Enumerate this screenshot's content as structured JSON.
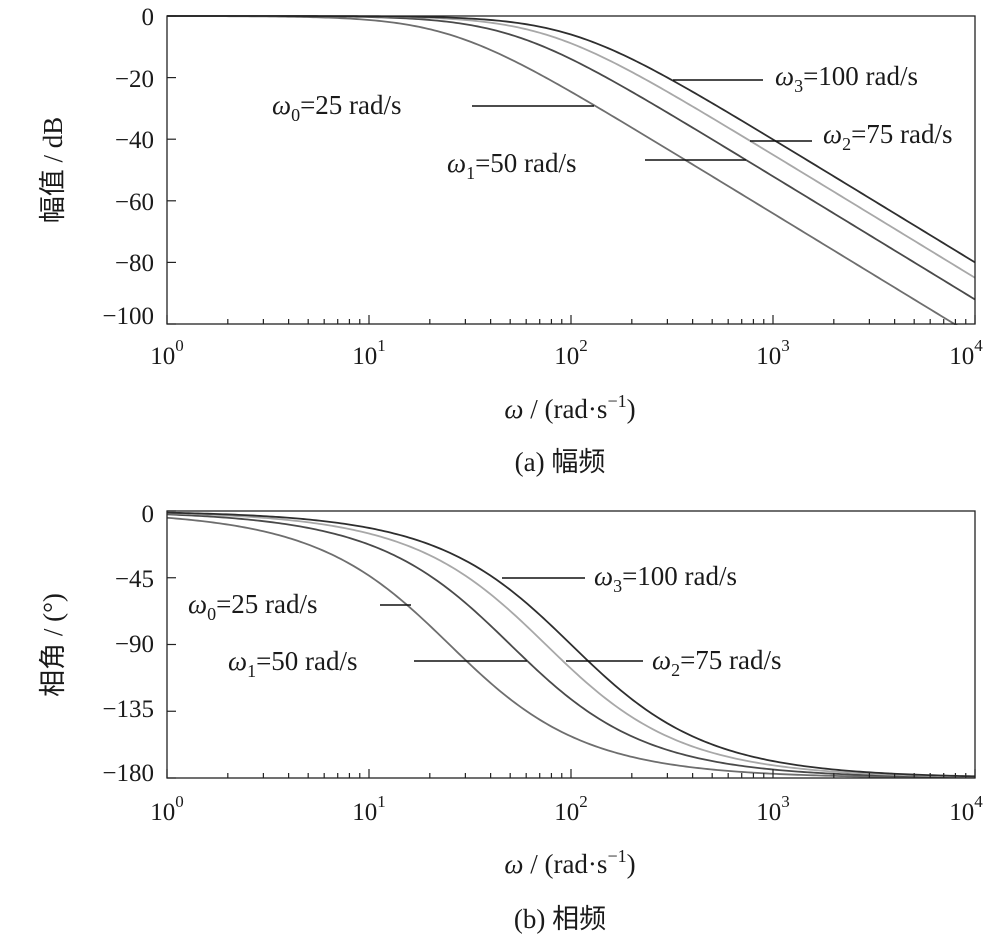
{
  "chart_data": [
    {
      "type": "line",
      "subplot": "a",
      "caption": "(a)  幅频",
      "ylabel": "幅值 / dB",
      "xlabel_symbol": "ω",
      "xlabel_text": " / (rad·s",
      "xlabel_exp": "−1",
      "xlabel_close": ")",
      "xscale": "log",
      "xlim": [
        1,
        10000
      ],
      "ylim": [
        -100,
        0
      ],
      "xticks": [
        {
          "base": "10",
          "exp": "0"
        },
        {
          "base": "10",
          "exp": "1"
        },
        {
          "base": "10",
          "exp": "2"
        },
        {
          "base": "10",
          "exp": "3"
        },
        {
          "base": "10",
          "exp": "4"
        }
      ],
      "yticks": [
        "0",
        "−20",
        "−40",
        "−60",
        "−80",
        "−100"
      ],
      "grid": false,
      "series": [
        {
          "name": "ω0=25 rad/s",
          "sym": "ω",
          "sub": "0",
          "rest": "=25 rad/s",
          "wn": 25,
          "color": "#6e6e6e",
          "x": [
            1,
            10,
            25,
            100,
            1000,
            10000
          ],
          "y": [
            0,
            -0.1,
            -3.0,
            -24.6,
            -64.1,
            -104.1
          ]
        },
        {
          "name": "ω1=50 rad/s",
          "sym": "ω",
          "sub": "1",
          "rest": "=50 rad/s",
          "wn": 50,
          "color": "#4a4a4a",
          "x": [
            1,
            10,
            50,
            100,
            1000,
            10000
          ],
          "y": [
            0,
            0,
            -3.0,
            -14.0,
            -52.0,
            -92.0
          ]
        },
        {
          "name": "ω2=75 rad/s",
          "sym": "ω",
          "sub": "2",
          "rest": "=75 rad/s",
          "wn": 75,
          "color": "#a8a8a8",
          "x": [
            1,
            10,
            75,
            100,
            1000,
            10000
          ],
          "y": [
            0,
            0,
            -3.0,
            -8.6,
            -45.0,
            -85.0
          ]
        },
        {
          "name": "ω3=100 rad/s",
          "sym": "ω",
          "sub": "3",
          "rest": "=100 rad/s",
          "wn": 100,
          "color": "#2e2e2e",
          "x": [
            1,
            10,
            100,
            1000,
            10000
          ],
          "y": [
            0,
            0,
            -3.0,
            -40.0,
            -80.0
          ]
        }
      ]
    },
    {
      "type": "line",
      "subplot": "b",
      "caption": "(b)  相频",
      "ylabel": "相角 / (°)",
      "xlabel_symbol": "ω",
      "xlabel_text": " / (rad·s",
      "xlabel_exp": "−1",
      "xlabel_close": ")",
      "xscale": "log",
      "xlim": [
        1,
        10000
      ],
      "ylim": [
        -180,
        0
      ],
      "xticks": [
        {
          "base": "10",
          "exp": "0"
        },
        {
          "base": "10",
          "exp": "1"
        },
        {
          "base": "10",
          "exp": "2"
        },
        {
          "base": "10",
          "exp": "3"
        },
        {
          "base": "10",
          "exp": "4"
        }
      ],
      "yticks": [
        "0",
        "−45",
        "−90",
        "−135",
        "−180"
      ],
      "grid": false,
      "series": [
        {
          "name": "ω0=25 rad/s",
          "sym": "ω",
          "sub": "0",
          "rest": "=25 rad/s",
          "wn": 25,
          "color": "#6e6e6e",
          "x": [
            1,
            10,
            25,
            100,
            1000,
            10000
          ],
          "y": [
            -4.6,
            -43.6,
            -90,
            -152.0,
            -177.1,
            -179.7
          ]
        },
        {
          "name": "ω1=50 rad/s",
          "sym": "ω",
          "sub": "1",
          "rest": "=50 rad/s",
          "wn": 50,
          "color": "#4a4a4a",
          "x": [
            1,
            10,
            50,
            100,
            1000,
            10000
          ],
          "y": [
            -2.3,
            -22.6,
            -90,
            -126.9,
            -174.3,
            -179.4
          ]
        },
        {
          "name": "ω2=75 rad/s",
          "sym": "ω",
          "sub": "2",
          "rest": "=75 rad/s",
          "wn": 75,
          "color": "#a8a8a8",
          "x": [
            1,
            10,
            75,
            100,
            1000,
            10000
          ],
          "y": [
            -1.5,
            -15.2,
            -90,
            -112.3,
            -171.4,
            -179.1
          ]
        },
        {
          "name": "ω3=100 rad/s",
          "sym": "ω",
          "sub": "3",
          "rest": "=100 rad/s",
          "wn": 100,
          "color": "#2e2e2e",
          "x": [
            1,
            10,
            100,
            1000,
            10000
          ],
          "y": [
            -1.1,
            -11.4,
            -90,
            -168.6,
            -178.9
          ]
        }
      ]
    }
  ]
}
